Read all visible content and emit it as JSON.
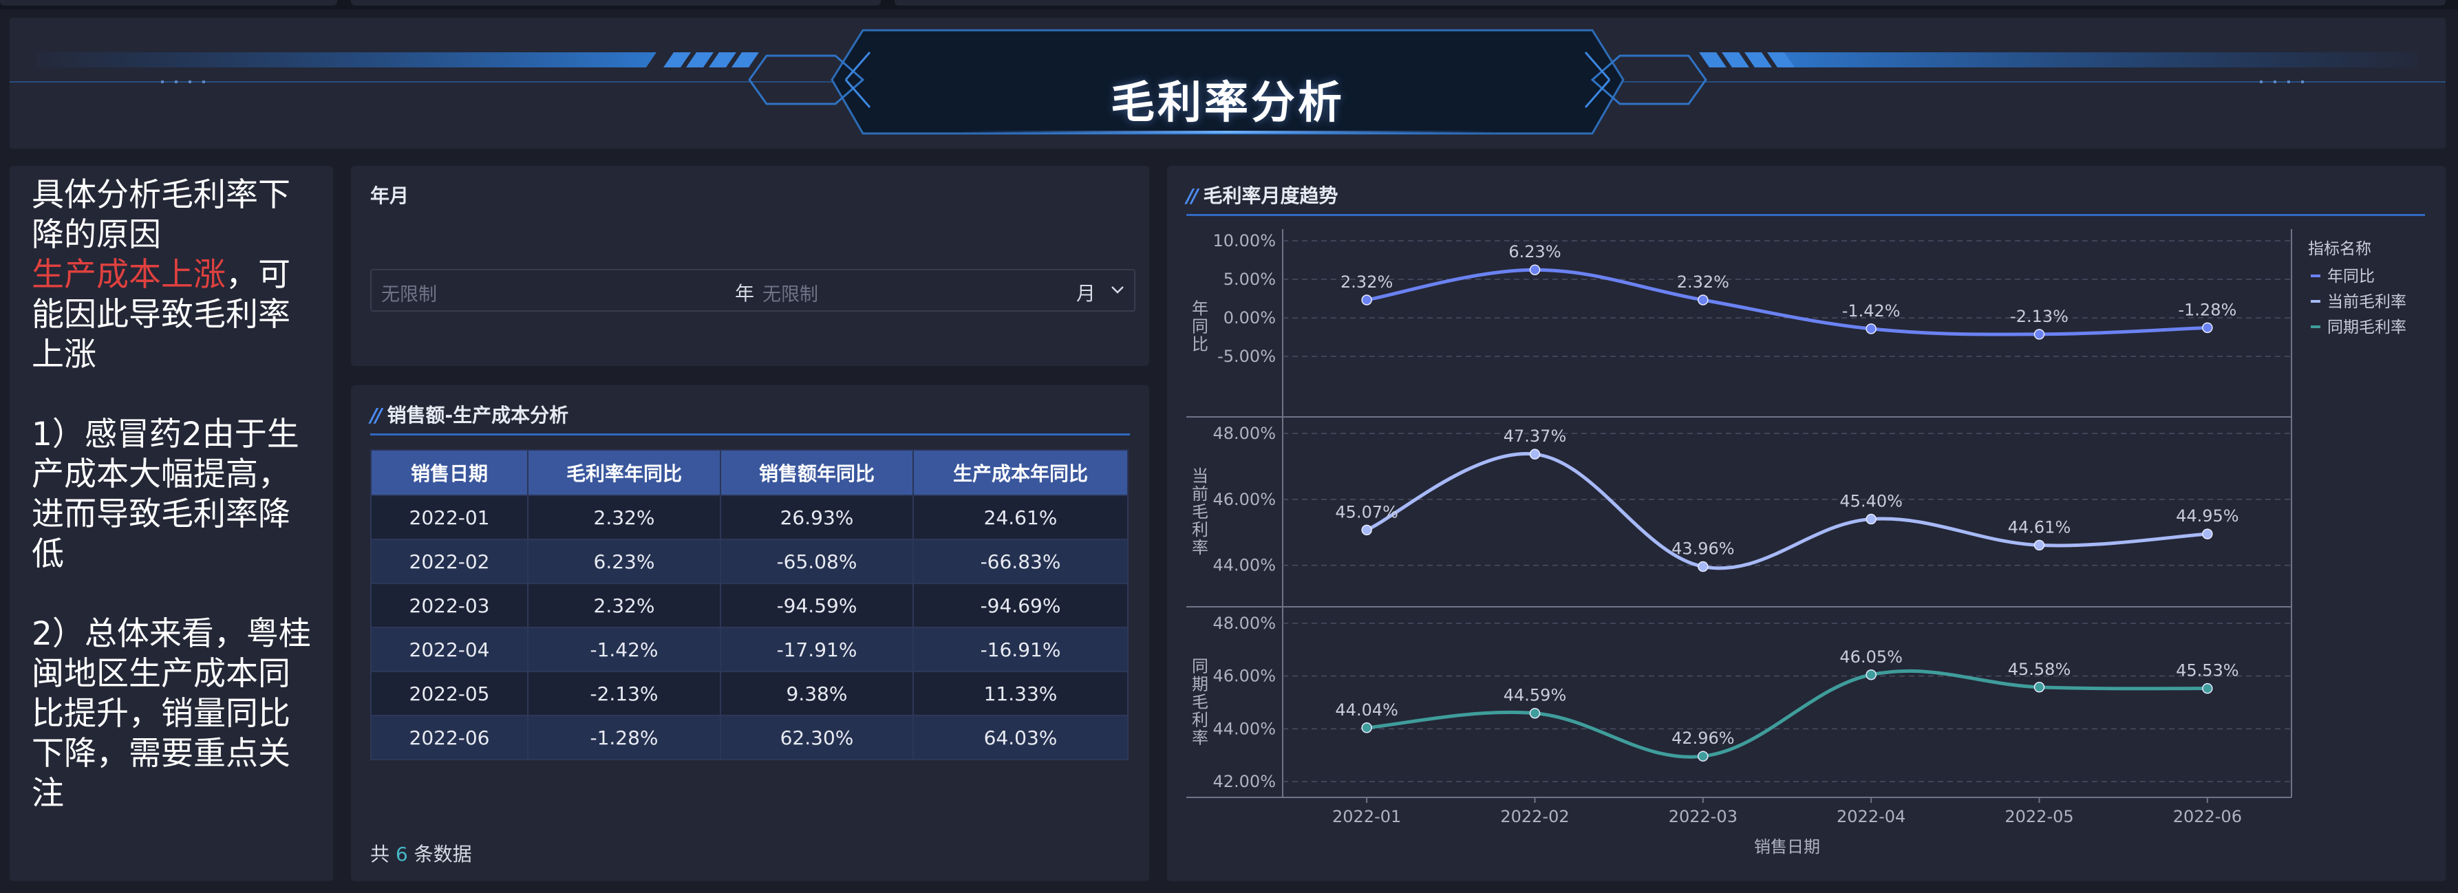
{
  "banner": {
    "title": "毛利率分析"
  },
  "analysis": {
    "line1": "具体分析毛利率下降的原因",
    "highlight": "生产成本上涨",
    "line2_rest": "，可能因此导致毛利率上涨",
    "para1": "1）感冒药2由于生产成本大幅提高，进而导致毛利率降低",
    "para2": "2）总体来看，粤桂闽地区生产成本同比提升，销量同比下降，需要重点关注"
  },
  "filter": {
    "label": "年月",
    "year_placeholder": "无限制",
    "year_unit": "年",
    "month_placeholder": "无限制",
    "month_unit": "月"
  },
  "table": {
    "title": "销售额-生产成本分析",
    "headers": [
      "销售日期",
      "毛利率年同比",
      "销售额年同比",
      "生产成本年同比"
    ],
    "rows": [
      [
        "2022-01",
        "2.32%",
        "26.93%",
        "24.61%"
      ],
      [
        "2022-02",
        "6.23%",
        "-65.08%",
        "-66.83%"
      ],
      [
        "2022-03",
        "2.32%",
        "-94.59%",
        "-94.69%"
      ],
      [
        "2022-04",
        "-1.42%",
        "-17.91%",
        "-16.91%"
      ],
      [
        "2022-05",
        "-2.13%",
        "9.38%",
        "11.33%"
      ],
      [
        "2022-06",
        "-1.28%",
        "62.30%",
        "64.03%"
      ]
    ],
    "footer_prefix": "共",
    "footer_count": "6",
    "footer_suffix": "条数据"
  },
  "chart_data": {
    "type": "line",
    "title": "毛利率月度趋势",
    "xlabel": "销售日期",
    "categories": [
      "2022-01",
      "2022-02",
      "2022-03",
      "2022-04",
      "2022-05",
      "2022-06"
    ],
    "legend_title": "指标名称",
    "legend_position": "right",
    "panels": [
      {
        "name": "年同比",
        "ylabel": "年同比",
        "color": "#6a82f2",
        "values": [
          2.32,
          6.23,
          2.32,
          -1.42,
          -2.13,
          -1.28
        ],
        "labels": [
          "2.32%",
          "6.23%",
          "2.32%",
          "-1.42%",
          "-2.13%",
          "-1.28%"
        ],
        "yticks": [
          "10.00%",
          "5.00%",
          "0.00%",
          "-5.00%"
        ],
        "ytick_values": [
          10,
          5,
          0,
          -5
        ],
        "ylim": [
          -5,
          10
        ]
      },
      {
        "name": "当前毛利率",
        "ylabel": "当前毛利率",
        "color": "#a7b9f7",
        "values": [
          45.07,
          47.37,
          43.96,
          45.4,
          44.61,
          44.95
        ],
        "labels": [
          "45.07%",
          "47.37%",
          "43.96%",
          "45.40%",
          "44.61%",
          "44.95%"
        ],
        "yticks": [
          "48.00%",
          "46.00%",
          "44.00%"
        ],
        "ytick_values": [
          48,
          46,
          44
        ],
        "ylim": [
          43.7,
          48
        ]
      },
      {
        "name": "同期毛利率",
        "ylabel": "同期毛利率",
        "color": "#3f9d9b",
        "values": [
          44.04,
          44.59,
          42.96,
          46.05,
          45.58,
          45.53
        ],
        "labels": [
          "44.04%",
          "44.59%",
          "42.96%",
          "46.05%",
          "45.58%",
          "45.53%"
        ],
        "yticks": [
          "48.00%",
          "46.00%",
          "44.00%",
          "42.00%"
        ],
        "ytick_values": [
          48,
          46,
          44,
          42
        ],
        "ylim": [
          42,
          48
        ]
      }
    ],
    "grid": true
  }
}
